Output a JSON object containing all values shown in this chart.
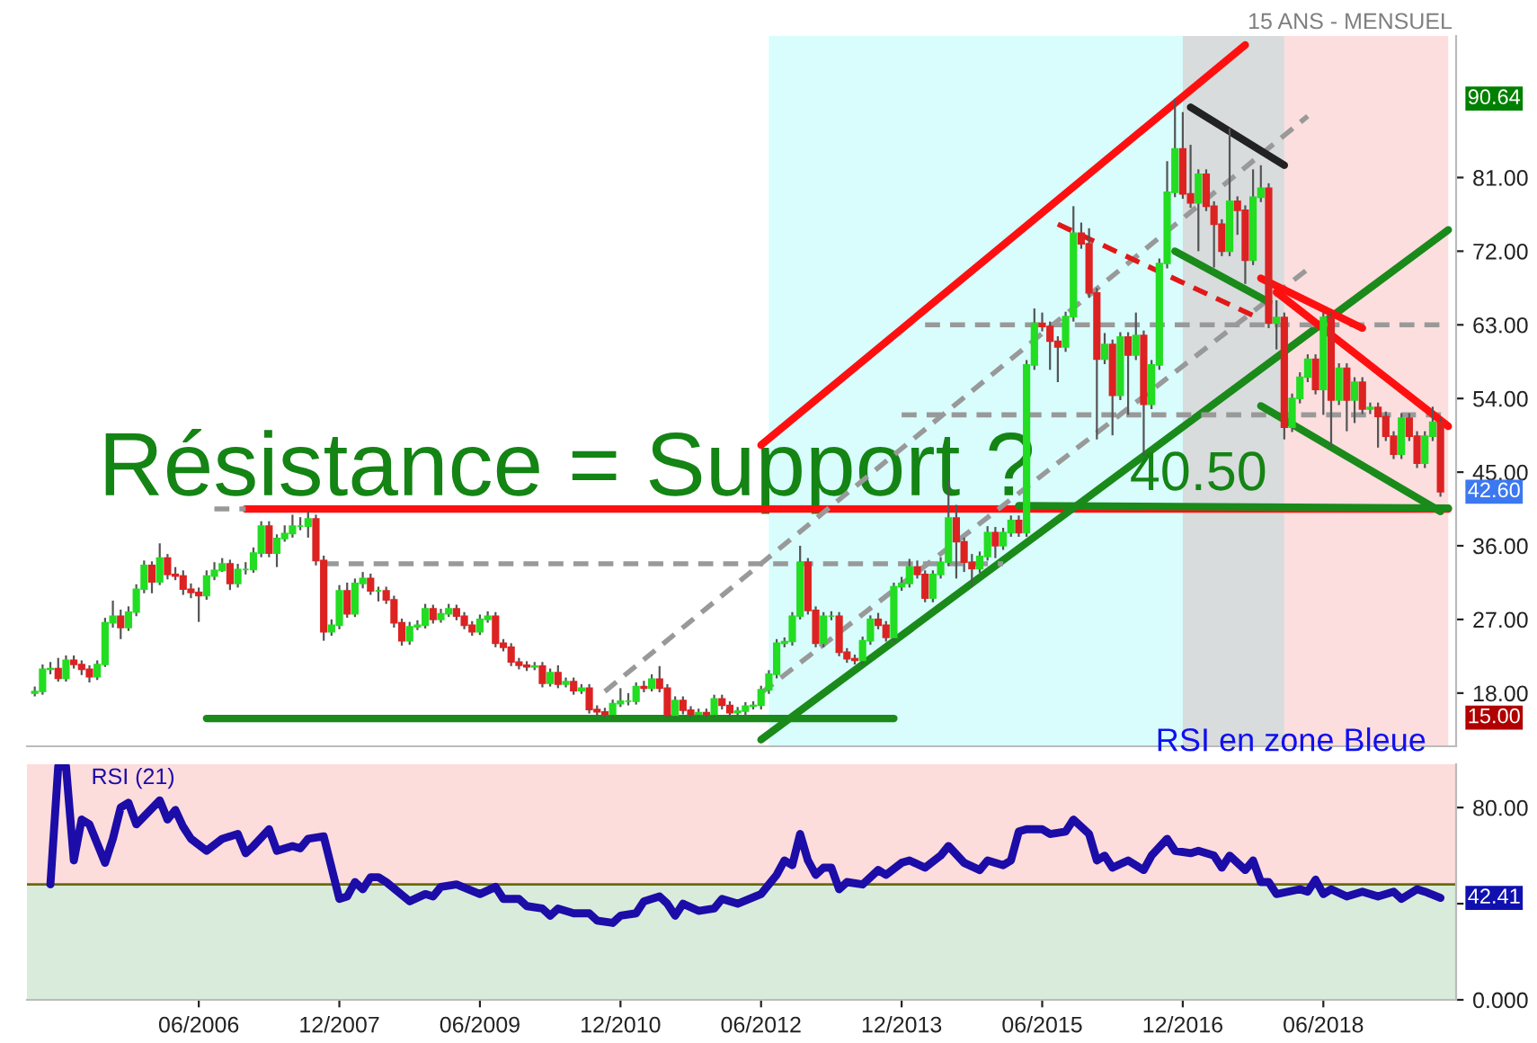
{
  "chart_data": [
    {
      "type": "candlestick",
      "x": [
        "2004-09",
        "2004-10",
        "2004-11",
        "2004-12",
        "2005-01",
        "2005-02",
        "2005-03",
        "2005-04",
        "2005-05",
        "2005-06",
        "2005-07",
        "2005-08",
        "2005-09",
        "2005-10",
        "2005-11",
        "2005-12",
        "2006-01",
        "2006-02",
        "2006-03",
        "2006-04",
        "2006-05",
        "2006-06",
        "2006-07",
        "2006-08",
        "2006-09",
        "2006-10",
        "2006-11",
        "2006-12",
        "2007-01",
        "2007-02",
        "2007-03",
        "2007-04",
        "2007-05",
        "2007-06",
        "2007-07",
        "2007-08",
        "2007-09",
        "2007-10",
        "2007-11",
        "2007-12",
        "2008-01",
        "2008-02",
        "2008-03",
        "2008-04",
        "2008-05",
        "2008-06",
        "2008-07",
        "2008-08",
        "2008-09",
        "2008-10",
        "2008-11",
        "2008-12",
        "2009-01",
        "2009-02",
        "2009-03",
        "2009-04",
        "2009-05",
        "2009-06",
        "2009-07",
        "2009-08",
        "2009-09",
        "2009-10",
        "2009-11",
        "2009-12",
        "2010-01",
        "2010-02",
        "2010-03",
        "2010-04",
        "2010-05",
        "2010-06",
        "2010-07",
        "2010-08",
        "2010-09",
        "2010-10",
        "2010-11",
        "2010-12",
        "2011-01",
        "2011-02",
        "2011-03",
        "2011-04",
        "2011-05",
        "2011-06",
        "2011-07",
        "2011-08",
        "2011-09",
        "2011-10",
        "2011-11",
        "2011-12",
        "2012-01",
        "2012-02",
        "2012-03",
        "2012-04",
        "2012-05",
        "2012-06",
        "2012-07",
        "2012-08",
        "2012-09",
        "2012-10",
        "2012-11",
        "2012-12",
        "2013-01",
        "2013-02",
        "2013-03",
        "2013-04",
        "2013-05",
        "2013-06",
        "2013-07",
        "2013-08",
        "2013-09",
        "2013-10",
        "2013-11",
        "2013-12",
        "2014-01",
        "2014-02",
        "2014-03",
        "2014-04",
        "2014-05",
        "2014-06",
        "2014-07",
        "2014-08",
        "2014-09",
        "2014-10",
        "2014-11",
        "2014-12",
        "2015-01",
        "2015-02",
        "2015-03",
        "2015-04",
        "2015-05",
        "2015-06",
        "2015-07",
        "2015-08",
        "2015-09",
        "2015-10",
        "2015-11",
        "2015-12",
        "2016-01",
        "2016-02",
        "2016-03",
        "2016-04",
        "2016-05",
        "2016-06",
        "2016-07",
        "2016-08",
        "2016-09",
        "2016-10",
        "2016-11",
        "2016-12",
        "2017-01",
        "2017-02",
        "2017-03",
        "2017-04",
        "2017-05",
        "2017-06",
        "2017-07",
        "2017-08",
        "2017-09",
        "2017-10",
        "2017-11",
        "2017-12",
        "2018-01",
        "2018-02",
        "2018-03",
        "2018-04",
        "2018-05",
        "2018-06",
        "2018-07",
        "2018-08",
        "2018-09",
        "2018-10",
        "2018-11",
        "2018-12",
        "2019-01",
        "2019-02",
        "2019-03",
        "2019-04",
        "2019-05",
        "2019-06",
        "2019-07",
        "2019-08",
        "2019-09"
      ],
      "ohlc": [
        [
          18.0,
          18.8,
          17.6,
          18.2
        ],
        [
          18.2,
          21.5,
          17.8,
          20.9
        ],
        [
          20.9,
          21.8,
          20.3,
          21.0
        ],
        [
          21.0,
          22.3,
          19.4,
          19.8
        ],
        [
          19.8,
          22.6,
          19.4,
          22.0
        ],
        [
          22.0,
          22.6,
          21.0,
          21.5
        ],
        [
          21.5,
          22.0,
          20.2,
          20.9
        ],
        [
          20.9,
          21.4,
          19.3,
          20.0
        ],
        [
          20.0,
          22.0,
          19.6,
          21.5
        ],
        [
          21.5,
          27.2,
          21.2,
          26.6
        ],
        [
          26.6,
          29.3,
          26.0,
          27.4
        ],
        [
          27.4,
          28.2,
          24.6,
          26.0
        ],
        [
          26.0,
          28.6,
          25.6,
          27.9
        ],
        [
          27.9,
          31.3,
          27.4,
          30.7
        ],
        [
          30.7,
          34.2,
          30.2,
          33.6
        ],
        [
          33.6,
          34.1,
          30.2,
          31.6
        ],
        [
          31.6,
          36.3,
          31.2,
          34.5
        ],
        [
          34.5,
          35.0,
          31.9,
          32.5
        ],
        [
          32.5,
          33.4,
          31.8,
          32.3
        ],
        [
          32.3,
          33.0,
          30.0,
          30.7
        ],
        [
          30.7,
          31.4,
          29.6,
          30.3
        ],
        [
          30.3,
          30.9,
          26.7,
          29.9
        ],
        [
          29.9,
          33.0,
          29.4,
          32.3
        ],
        [
          32.3,
          34.0,
          31.8,
          33.0
        ],
        [
          33.0,
          34.5,
          32.8,
          33.8
        ],
        [
          33.8,
          34.3,
          30.6,
          31.4
        ],
        [
          31.4,
          33.8,
          30.9,
          33.1
        ],
        [
          33.1,
          34.0,
          32.5,
          33.1
        ],
        [
          33.1,
          35.8,
          32.7,
          35.1
        ],
        [
          35.1,
          39.0,
          34.6,
          38.4
        ],
        [
          38.4,
          39.0,
          34.6,
          35.1
        ],
        [
          35.1,
          37.4,
          33.4,
          36.9
        ],
        [
          36.9,
          38.5,
          36.5,
          37.5
        ],
        [
          37.5,
          39.8,
          37.0,
          38.4
        ],
        [
          38.4,
          39.5,
          37.9,
          38.4
        ],
        [
          38.4,
          40.2,
          37.0,
          39.3
        ],
        [
          39.3,
          39.8,
          33.6,
          34.2
        ],
        [
          34.2,
          34.8,
          24.4,
          25.5
        ],
        [
          25.5,
          27.0,
          25.0,
          26.3
        ],
        [
          26.3,
          31.2,
          25.8,
          30.5
        ],
        [
          30.5,
          31.5,
          27.2,
          27.7
        ],
        [
          27.7,
          32.0,
          27.3,
          31.4
        ],
        [
          31.4,
          32.8,
          30.8,
          32.0
        ],
        [
          32.0,
          32.6,
          30.0,
          30.5
        ],
        [
          30.5,
          31.0,
          29.2,
          30.5
        ],
        [
          30.5,
          31.0,
          28.9,
          29.4
        ],
        [
          29.4,
          29.9,
          26.0,
          26.6
        ],
        [
          26.6,
          27.1,
          23.8,
          24.4
        ],
        [
          24.4,
          26.7,
          23.9,
          26.1
        ],
        [
          26.1,
          26.9,
          25.7,
          26.3
        ],
        [
          26.3,
          28.9,
          25.9,
          28.3
        ],
        [
          28.3,
          28.8,
          26.5,
          27.0
        ],
        [
          27.0,
          28.3,
          26.6,
          27.7
        ],
        [
          27.7,
          28.9,
          27.3,
          28.3
        ],
        [
          28.3,
          28.8,
          26.9,
          27.4
        ],
        [
          27.4,
          27.9,
          25.8,
          26.3
        ],
        [
          26.3,
          26.8,
          25.0,
          25.5
        ],
        [
          25.5,
          27.6,
          25.1,
          27.0
        ],
        [
          27.0,
          28.0,
          26.6,
          27.4
        ],
        [
          27.4,
          27.9,
          23.6,
          24.1
        ],
        [
          24.1,
          24.6,
          23.1,
          23.6
        ],
        [
          23.6,
          24.1,
          21.3,
          21.8
        ],
        [
          21.8,
          22.3,
          20.9,
          21.4
        ],
        [
          21.4,
          21.9,
          20.7,
          21.2
        ],
        [
          21.2,
          21.8,
          20.8,
          21.3
        ],
        [
          21.3,
          21.8,
          18.7,
          19.2
        ],
        [
          19.2,
          21.0,
          18.8,
          20.5
        ],
        [
          20.5,
          21.4,
          18.6,
          19.1
        ],
        [
          19.1,
          19.9,
          18.7,
          19.4
        ],
        [
          19.4,
          19.9,
          17.8,
          18.3
        ],
        [
          18.3,
          19.1,
          17.9,
          18.6
        ],
        [
          18.6,
          19.1,
          15.5,
          16.0
        ],
        [
          16.0,
          16.5,
          15.2,
          15.7
        ],
        [
          15.7,
          16.2,
          15.0,
          15.4
        ],
        [
          15.4,
          17.2,
          15.1,
          16.7
        ],
        [
          16.7,
          18.6,
          16.3,
          17.0
        ],
        [
          17.0,
          18.0,
          16.5,
          17.0
        ],
        [
          17.0,
          19.3,
          16.6,
          18.8
        ],
        [
          18.8,
          19.5,
          18.1,
          18.6
        ],
        [
          18.6,
          20.3,
          18.2,
          19.7
        ],
        [
          19.7,
          21.3,
          18.1,
          18.6
        ],
        [
          18.6,
          19.1,
          15.0,
          15.3
        ],
        [
          15.3,
          17.6,
          15.0,
          17.1
        ],
        [
          17.1,
          17.6,
          15.4,
          15.9
        ],
        [
          15.9,
          16.4,
          15.0,
          15.4
        ],
        [
          15.4,
          16.1,
          15.1,
          15.6
        ],
        [
          15.6,
          16.1,
          15.0,
          15.4
        ],
        [
          15.4,
          17.8,
          15.1,
          17.3
        ],
        [
          17.3,
          17.8,
          16.0,
          16.5
        ],
        [
          16.5,
          17.0,
          15.1,
          15.6
        ],
        [
          15.6,
          16.3,
          15.2,
          15.8
        ],
        [
          15.8,
          16.9,
          15.3,
          16.4
        ],
        [
          16.4,
          17.0,
          16.0,
          16.5
        ],
        [
          16.5,
          18.9,
          16.0,
          18.4
        ],
        [
          18.4,
          20.8,
          17.9,
          20.3
        ],
        [
          20.3,
          24.6,
          19.8,
          24.1
        ],
        [
          24.1,
          24.8,
          23.6,
          24.3
        ],
        [
          24.3,
          27.9,
          23.8,
          27.4
        ],
        [
          27.4,
          36.0,
          27.0,
          34.0
        ],
        [
          34.0,
          34.5,
          27.6,
          28.1
        ],
        [
          28.1,
          28.6,
          23.6,
          24.1
        ],
        [
          24.1,
          27.9,
          23.6,
          27.4
        ],
        [
          27.4,
          28.0,
          26.9,
          27.4
        ],
        [
          27.4,
          27.9,
          22.5,
          23.0
        ],
        [
          23.0,
          23.5,
          21.7,
          22.2
        ],
        [
          22.2,
          22.7,
          21.5,
          22.0
        ],
        [
          22.0,
          24.9,
          21.5,
          24.4
        ],
        [
          24.4,
          27.5,
          23.9,
          27.0
        ],
        [
          27.0,
          27.8,
          25.8,
          26.3
        ],
        [
          26.3,
          26.8,
          24.3,
          24.8
        ],
        [
          24.8,
          31.5,
          24.3,
          31.0
        ],
        [
          31.0,
          32.2,
          30.5,
          31.4
        ],
        [
          31.4,
          34.4,
          30.9,
          33.4
        ],
        [
          33.4,
          34.2,
          32.0,
          32.5
        ],
        [
          32.5,
          33.0,
          29.1,
          29.6
        ],
        [
          29.6,
          33.0,
          29.1,
          32.5
        ],
        [
          32.5,
          34.6,
          32.0,
          34.0
        ],
        [
          34.0,
          44.0,
          33.5,
          39.4
        ],
        [
          39.4,
          41.0,
          32.0,
          36.5
        ],
        [
          36.5,
          37.0,
          32.8,
          34.0
        ],
        [
          34.0,
          35.0,
          31.0,
          33.2
        ],
        [
          33.2,
          35.3,
          32.7,
          34.7
        ],
        [
          34.7,
          38.4,
          34.2,
          37.6
        ],
        [
          37.6,
          38.3,
          34.5,
          36.0
        ],
        [
          36.0,
          38.2,
          35.5,
          37.6
        ],
        [
          37.6,
          39.7,
          37.1,
          39.1
        ],
        [
          39.1,
          39.7,
          37.1,
          37.6
        ],
        [
          37.6,
          58.7,
          37.1,
          58.1
        ],
        [
          58.1,
          65.0,
          57.5,
          63.2
        ],
        [
          63.2,
          64.5,
          62.2,
          62.8
        ],
        [
          62.8,
          63.4,
          57.5,
          61.0
        ],
        [
          61.0,
          61.6,
          56.0,
          60.3
        ],
        [
          60.3,
          64.6,
          59.7,
          64.0
        ],
        [
          64.0,
          77.5,
          63.4,
          74.2
        ],
        [
          74.2,
          75.5,
          72.3,
          72.9
        ],
        [
          72.9,
          74.8,
          66.3,
          66.9
        ],
        [
          66.9,
          67.5,
          49.0,
          58.8
        ],
        [
          58.8,
          62.0,
          58.2,
          60.6
        ],
        [
          60.6,
          61.2,
          49.5,
          54.4
        ],
        [
          54.4,
          62.1,
          53.8,
          61.5
        ],
        [
          61.5,
          62.1,
          52.0,
          59.3
        ],
        [
          59.3,
          64.5,
          58.7,
          61.7
        ],
        [
          61.7,
          62.3,
          47.0,
          53.3
        ],
        [
          53.3,
          58.7,
          52.7,
          58.1
        ],
        [
          58.1,
          71.1,
          57.5,
          70.5
        ],
        [
          70.5,
          83.0,
          69.9,
          79.2
        ],
        [
          79.2,
          90.64,
          78.6,
          84.5
        ],
        [
          84.5,
          89.0,
          78.4,
          79.0
        ],
        [
          79.0,
          85.0,
          77.3,
          77.9
        ],
        [
          77.9,
          82.0,
          72.0,
          81.4
        ],
        [
          81.4,
          82.0,
          76.9,
          77.5
        ],
        [
          77.5,
          78.1,
          70.0,
          75.3
        ],
        [
          75.3,
          75.9,
          71.4,
          72.0
        ],
        [
          72.0,
          87.0,
          71.4,
          78.1
        ],
        [
          78.1,
          78.7,
          74.0,
          77.0
        ],
        [
          77.0,
          77.6,
          68.0,
          70.9
        ],
        [
          70.9,
          82.0,
          70.3,
          78.6
        ],
        [
          78.6,
          82.5,
          78.0,
          79.7
        ],
        [
          79.7,
          80.3,
          62.6,
          63.2
        ],
        [
          63.2,
          66.0,
          60.0,
          63.9
        ],
        [
          63.9,
          64.5,
          49.0,
          50.5
        ],
        [
          50.5,
          54.6,
          49.9,
          54.0
        ],
        [
          54.0,
          57.2,
          53.4,
          56.6
        ],
        [
          56.6,
          59.4,
          56.0,
          58.8
        ],
        [
          58.8,
          59.4,
          54.5,
          55.1
        ],
        [
          55.1,
          64.5,
          52.0,
          63.9
        ],
        [
          63.9,
          64.5,
          48.0,
          53.8
        ],
        [
          53.8,
          58.3,
          53.2,
          57.7
        ],
        [
          57.7,
          58.3,
          50.0,
          53.8
        ],
        [
          53.8,
          56.6,
          51.0,
          56.0
        ],
        [
          56.0,
          56.6,
          52.1,
          52.7
        ],
        [
          52.7,
          53.5,
          52.1,
          52.9
        ],
        [
          52.9,
          53.5,
          48.0,
          51.8
        ],
        [
          51.8,
          52.4,
          48.8,
          49.4
        ],
        [
          49.4,
          50.0,
          46.6,
          47.2
        ],
        [
          47.2,
          52.2,
          46.6,
          51.6
        ],
        [
          51.6,
          52.2,
          48.8,
          49.4
        ],
        [
          49.4,
          50.0,
          45.5,
          46.1
        ],
        [
          46.1,
          50.0,
          45.5,
          49.4
        ],
        [
          49.4,
          53.0,
          48.8,
          51.1
        ],
        [
          51.1,
          51.7,
          42.0,
          42.6
        ]
      ],
      "series": [
        {
          "type": "line",
          "color": "#ff1010",
          "line_style": "solid",
          "x": [
            "2006-12",
            "2019-10"
          ],
          "values": [
            40.5,
            40.5
          ]
        },
        {
          "type": "line",
          "color": "#1a8a1a",
          "line_style": "solid",
          "x": [
            "2015-03",
            "2019-10"
          ],
          "values": [
            40.9,
            40.6
          ]
        },
        {
          "type": "line",
          "color": "#999999",
          "line_style": "dashed",
          "x": [
            "2006-08",
            "2006-12"
          ],
          "values": [
            40.5,
            40.5
          ]
        },
        {
          "type": "line",
          "color": "#1a8a1a",
          "line_style": "solid",
          "x": [
            "2006-07",
            "2013-11"
          ],
          "values": [
            14.9,
            14.9
          ]
        },
        {
          "type": "line",
          "color": "#ff1010",
          "line_style": "solid",
          "x": [
            "2012-06",
            "2017-08"
          ],
          "values": [
            48.3,
            97.2
          ]
        },
        {
          "type": "line",
          "color": "#1a8a1a",
          "line_style": "solid",
          "x": [
            "2012-06",
            "2019-10"
          ],
          "values": [
            12.3,
            74.6
          ]
        },
        {
          "type": "line",
          "color": "#999999",
          "line_style": "dashed",
          "x": [
            "2007-10",
            "2015-01"
          ],
          "values": [
            33.8,
            33.8
          ]
        },
        {
          "type": "line",
          "color": "#999999",
          "line_style": "dashed",
          "x": [
            "2014-03",
            "2019-10"
          ],
          "values": [
            63.0,
            63.0
          ]
        },
        {
          "type": "line",
          "color": "#999999",
          "line_style": "dashed",
          "x": [
            "2013-12",
            "2019-10"
          ],
          "values": [
            52.0,
            52.0
          ]
        },
        {
          "type": "line",
          "color": "#999999",
          "line_style": "dashed",
          "x": [
            "2010-10",
            "2018-04"
          ],
          "values": [
            18.2,
            88.5
          ]
        },
        {
          "type": "line",
          "color": "#999999",
          "line_style": "dashed",
          "x": [
            "2012-06",
            "2018-04"
          ],
          "values": [
            18.0,
            69.8
          ]
        },
        {
          "type": "line",
          "color": "#e01818",
          "line_style": "dashed",
          "x": [
            "2015-08",
            "2017-10"
          ],
          "values": [
            75.3,
            63.7
          ]
        },
        {
          "type": "line",
          "color": "#222222",
          "line_style": "solid",
          "x": [
            "2017-01",
            "2018-01"
          ],
          "values": [
            89.6,
            82.5
          ]
        },
        {
          "type": "line",
          "color": "#1a8a1a",
          "line_style": "solid",
          "x": [
            "2016-11",
            "2017-11"
          ],
          "values": [
            72.0,
            65.8
          ]
        },
        {
          "type": "line",
          "color": "#ff1010",
          "line_style": "solid",
          "x": [
            "2017-10",
            "2018-11"
          ],
          "values": [
            68.7,
            62.6
          ]
        },
        {
          "type": "line",
          "color": "#ff1010",
          "line_style": "solid",
          "x": [
            "2017-12",
            "2019-10"
          ],
          "values": [
            67.0,
            50.6
          ]
        },
        {
          "type": "line",
          "color": "#1a8a1a",
          "line_style": "solid",
          "x": [
            "2017-10",
            "2019-09"
          ],
          "values": [
            53.1,
            40.2
          ]
        }
      ],
      "xlim": [
        "2004-08",
        "2019-11"
      ],
      "ylim": [
        11.5,
        98.3
      ],
      "yticks": [
        {
          "value": 18,
          "label": "18.00"
        },
        {
          "value": 27,
          "label": "27.00"
        },
        {
          "value": 36,
          "label": "36.00"
        },
        {
          "value": 45,
          "label": "45.00"
        },
        {
          "value": 54,
          "label": "54.00"
        },
        {
          "value": 63,
          "label": "63.00"
        },
        {
          "value": 72,
          "label": "72.00"
        },
        {
          "value": 81,
          "label": "81.00"
        }
      ],
      "tick_labels": "y",
      "bands": [
        {
          "axis": "x",
          "from": "2012-07",
          "to": "2019-07",
          "color": "#d9fdfd"
        },
        {
          "axis": "x",
          "from": "2016-12",
          "to": "2018-01",
          "color": "#d8dcdc"
        },
        {
          "axis": "x",
          "from": "2018-01",
          "to": "2019-10",
          "color": "#fcdede"
        }
      ],
      "annotations": [
        "15 ANS - MENSUEL",
        "Résistance = Support ?",
        {
          "text": "40.50",
          "x": "2017-02",
          "y": 40.5
        },
        {
          "text": "90.64",
          "x": "2019-11",
          "y": 90.64
        },
        {
          "text": "42.60",
          "x": "2019-09",
          "y": 42.6
        },
        {
          "text": "15.00",
          "x": "2019-11",
          "y": 15.0
        }
      ]
    },
    {
      "type": "line",
      "series": [
        {
          "name": "RSI (21)",
          "color": "#1c0ca8",
          "x": [
            "2004-11",
            "2004-12",
            "2005-01",
            "2005-02",
            "2005-03",
            "2005-04",
            "2005-06",
            "2005-07",
            "2005-08",
            "2005-09",
            "2005-10",
            "2006-01",
            "2006-02",
            "2006-03",
            "2006-04",
            "2006-05",
            "2006-07",
            "2006-09",
            "2006-11",
            "2006-12",
            "2007-01",
            "2007-03",
            "2007-04",
            "2007-06",
            "2007-07",
            "2007-08",
            "2007-10",
            "2007-12",
            "2008-01",
            "2008-02",
            "2008-03",
            "2008-04",
            "2008-05",
            "2008-06",
            "2008-09",
            "2008-11",
            "2008-12",
            "2009-01",
            "2009-03",
            "2009-06",
            "2009-08",
            "2009-09",
            "2009-11",
            "2009-12",
            "2010-02",
            "2010-03",
            "2010-04",
            "2010-06",
            "2010-08",
            "2010-09",
            "2010-11",
            "2010-12",
            "2011-02",
            "2011-03",
            "2011-05",
            "2011-06",
            "2011-07",
            "2011-08",
            "2011-10",
            "2011-12",
            "2012-01",
            "2012-03",
            "2012-06",
            "2012-08",
            "2012-09",
            "2012-10",
            "2012-11",
            "2012-12",
            "2013-01",
            "2013-02",
            "2013-03",
            "2013-04",
            "2013-05",
            "2013-07",
            "2013-09",
            "2013-10",
            "2013-12",
            "2014-01",
            "2014-03",
            "2014-05",
            "2014-06",
            "2014-08",
            "2014-10",
            "2014-11",
            "2015-01",
            "2015-02",
            "2015-03",
            "2015-04",
            "2015-06",
            "2015-07",
            "2015-09",
            "2015-10",
            "2015-12",
            "2016-01",
            "2016-02",
            "2016-03",
            "2016-05",
            "2016-07",
            "2016-08",
            "2016-10",
            "2016-11",
            "2017-01",
            "2017-02",
            "2017-04",
            "2017-05",
            "2017-06",
            "2017-08",
            "2017-09",
            "2017-10",
            "2017-11",
            "2017-12",
            "2018-03",
            "2018-04",
            "2018-05",
            "2018-06",
            "2018-07",
            "2018-09",
            "2018-11",
            "2019-01",
            "2019-03",
            "2019-04",
            "2019-06",
            "2019-07",
            "2019-09"
          ],
          "values": [
            48,
            97,
            97,
            58,
            75,
            73,
            57,
            67,
            80,
            82,
            73,
            83,
            75,
            79,
            72,
            67,
            62,
            67,
            69,
            61,
            64,
            71,
            62,
            64,
            63,
            67,
            68,
            42,
            43,
            49,
            46,
            51,
            51,
            49,
            41,
            44,
            43,
            47,
            48,
            44,
            47,
            42,
            42,
            39,
            38,
            35,
            38,
            36,
            36,
            33,
            32,
            35,
            36,
            41,
            43,
            40,
            35,
            40,
            37,
            38,
            42,
            40,
            44,
            52,
            58,
            56,
            69,
            58,
            52,
            55,
            55,
            46,
            49,
            48,
            54,
            52,
            57,
            58,
            55,
            60,
            64,
            57,
            54,
            58,
            56,
            58,
            70,
            71,
            71,
            69,
            70,
            75,
            69,
            58,
            60,
            55,
            58,
            54,
            60,
            67,
            62,
            61,
            62,
            60,
            55,
            60,
            54,
            58,
            49,
            49,
            44,
            46,
            45,
            50,
            44,
            46,
            43,
            45,
            43,
            45,
            42,
            46,
            45,
            42.41
          ]
        }
      ],
      "xlim": [
        "2004-08",
        "2019-11"
      ],
      "ylim": [
        0,
        98
      ],
      "xticks": [
        {
          "value": "2006-06",
          "label": "06/2006"
        },
        {
          "value": "2007-12",
          "label": "12/2007"
        },
        {
          "value": "2009-06",
          "label": "06/2009"
        },
        {
          "value": "2010-12",
          "label": "12/2010"
        },
        {
          "value": "2012-06",
          "label": "06/2012"
        },
        {
          "value": "2013-12",
          "label": "12/2013"
        },
        {
          "value": "2015-06",
          "label": "06/2015"
        },
        {
          "value": "2016-12",
          "label": "12/2016"
        },
        {
          "value": "2018-06",
          "label": "06/2018"
        }
      ],
      "yticks": [
        {
          "value": 0,
          "label": "0.000"
        },
        {
          "value": 40,
          "label": null
        },
        {
          "value": 80,
          "label": "80.00"
        }
      ],
      "bands": [
        {
          "axis": "y",
          "from": 48,
          "to": 98,
          "color": "#fddcdc"
        },
        {
          "axis": "y",
          "from": 0,
          "to": 48,
          "color": "#d9ecdb"
        }
      ],
      "ref_lines": [
        {
          "axis": "y",
          "value": 48,
          "color": "#6b6b10"
        }
      ],
      "annotations": [
        "RSI en zone Bleue",
        {
          "text": "42.41",
          "x": "2019-09",
          "y": 42.41
        }
      ]
    }
  ]
}
